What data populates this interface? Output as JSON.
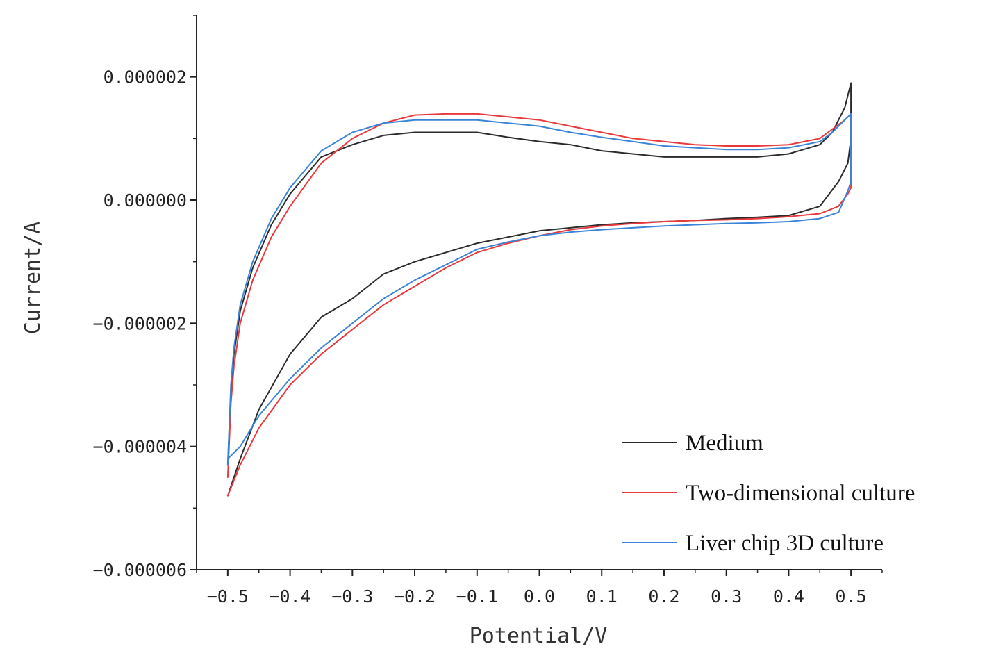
{
  "chart_data": {
    "type": "line",
    "title": "",
    "xlabel": "Potential/V",
    "ylabel": "Current/A",
    "xlim": [
      -0.55,
      0.55
    ],
    "ylim": [
      -6e-06,
      3e-06
    ],
    "x_ticks": [
      -0.5,
      -0.4,
      -0.3,
      -0.2,
      -0.1,
      0.0,
      0.1,
      0.2,
      0.3,
      0.4,
      0.5
    ],
    "x_tick_labels": [
      "−0.5",
      "−0.4",
      "−0.3",
      "−0.2",
      "−0.1",
      "0.0",
      "0.1",
      "0.2",
      "0.3",
      "0.4",
      "0.5"
    ],
    "y_ticks": [
      2e-06,
      0.0,
      -2e-06,
      -4e-06,
      -6e-06
    ],
    "y_tick_labels": [
      "0.000002",
      "0.000000",
      "−0.000002",
      "−0.000004",
      "−0.000006"
    ],
    "legend_position": "bottom-right",
    "grid": false,
    "series": [
      {
        "name": "Medium",
        "color": "#2b2b2b",
        "x": [
          -0.5,
          -0.495,
          -0.49,
          -0.48,
          -0.46,
          -0.43,
          -0.4,
          -0.35,
          -0.3,
          -0.25,
          -0.2,
          -0.15,
          -0.1,
          -0.05,
          0.0,
          0.05,
          0.1,
          0.15,
          0.2,
          0.25,
          0.3,
          0.35,
          0.4,
          0.45,
          0.47,
          0.49,
          0.5,
          0.5,
          0.495,
          0.48,
          0.45,
          0.4,
          0.35,
          0.3,
          0.25,
          0.2,
          0.15,
          0.1,
          0.05,
          0.0,
          -0.05,
          -0.1,
          -0.15,
          -0.2,
          -0.25,
          -0.3,
          -0.35,
          -0.4,
          -0.45,
          -0.48,
          -0.5
        ],
        "y": [
          -4.3e-06,
          -3.1e-06,
          -2.5e-06,
          -1.8e-06,
          -1.1e-06,
          -4e-07,
          1e-07,
          7e-07,
          9e-07,
          1.05e-06,
          1.1e-06,
          1.1e-06,
          1.1e-06,
          1.02e-06,
          9.5e-07,
          9e-07,
          8e-07,
          7.5e-07,
          7e-07,
          7e-07,
          7e-07,
          7e-07,
          7.5e-07,
          9e-07,
          1.1e-06,
          1.5e-06,
          1.9e-06,
          1e-06,
          6e-07,
          3e-07,
          -1e-07,
          -2.5e-07,
          -2.8e-07,
          -3e-07,
          -3.3e-07,
          -3.5e-07,
          -3.7e-07,
          -4e-07,
          -4.5e-07,
          -5e-07,
          -6e-07,
          -7e-07,
          -8.5e-07,
          -1e-06,
          -1.2e-06,
          -1.6e-06,
          -1.9e-06,
          -2.5e-06,
          -3.4e-06,
          -4.2e-06,
          -4.8e-06
        ]
      },
      {
        "name": "Two-dimensional culture",
        "color": "#e8393c",
        "x": [
          -0.5,
          -0.495,
          -0.49,
          -0.48,
          -0.46,
          -0.43,
          -0.4,
          -0.35,
          -0.3,
          -0.25,
          -0.2,
          -0.15,
          -0.1,
          -0.05,
          0.0,
          0.05,
          0.1,
          0.15,
          0.2,
          0.25,
          0.3,
          0.35,
          0.4,
          0.45,
          0.47,
          0.49,
          0.5,
          0.5,
          0.495,
          0.48,
          0.45,
          0.4,
          0.35,
          0.3,
          0.25,
          0.2,
          0.15,
          0.1,
          0.05,
          0.0,
          -0.05,
          -0.1,
          -0.15,
          -0.2,
          -0.25,
          -0.3,
          -0.35,
          -0.4,
          -0.45,
          -0.48,
          -0.5
        ],
        "y": [
          -4.5e-06,
          -3.3e-06,
          -2.7e-06,
          -2e-06,
          -1.3e-06,
          -6e-07,
          -1e-07,
          6e-07,
          1e-06,
          1.25e-06,
          1.38e-06,
          1.4e-06,
          1.4e-06,
          1.35e-06,
          1.3e-06,
          1.2e-06,
          1.1e-06,
          1e-06,
          9.5e-07,
          9e-07,
          8.8e-07,
          8.8e-07,
          9e-07,
          1e-06,
          1.15e-06,
          1.3e-06,
          1.4e-06,
          2e-07,
          1e-07,
          -1e-07,
          -2.2e-07,
          -2.7e-07,
          -3e-07,
          -3.2e-07,
          -3.3e-07,
          -3.5e-07,
          -3.8e-07,
          -4.2e-07,
          -4.8e-07,
          -5.8e-07,
          -7e-07,
          -8.5e-07,
          -1.1e-06,
          -1.4e-06,
          -1.7e-06,
          -2.1e-06,
          -2.5e-06,
          -3e-06,
          -3.7e-06,
          -4.3e-06,
          -4.8e-06
        ]
      },
      {
        "name": "Liver chip 3D culture",
        "color": "#3a84d8",
        "x": [
          -0.5,
          -0.495,
          -0.49,
          -0.48,
          -0.46,
          -0.43,
          -0.4,
          -0.35,
          -0.3,
          -0.25,
          -0.2,
          -0.15,
          -0.1,
          -0.05,
          0.0,
          0.05,
          0.1,
          0.15,
          0.2,
          0.25,
          0.3,
          0.35,
          0.4,
          0.45,
          0.47,
          0.49,
          0.5,
          0.5,
          0.495,
          0.48,
          0.45,
          0.4,
          0.35,
          0.3,
          0.25,
          0.2,
          0.15,
          0.1,
          0.05,
          0.0,
          -0.05,
          -0.1,
          -0.15,
          -0.2,
          -0.25,
          -0.3,
          -0.35,
          -0.4,
          -0.45,
          -0.48,
          -0.5
        ],
        "y": [
          -4.3e-06,
          -3e-06,
          -2.4e-06,
          -1.7e-06,
          -1e-06,
          -3e-07,
          2e-07,
          8e-07,
          1.1e-06,
          1.25e-06,
          1.3e-06,
          1.3e-06,
          1.3e-06,
          1.25e-06,
          1.2e-06,
          1.1e-06,
          1.02e-06,
          9.5e-07,
          8.8e-07,
          8.5e-07,
          8.2e-07,
          8.2e-07,
          8.5e-07,
          9.5e-07,
          1.1e-06,
          1.3e-06,
          1.4e-06,
          3e-07,
          1.5e-07,
          -2e-07,
          -3e-07,
          -3.5e-07,
          -3.7e-07,
          -3.8e-07,
          -4e-07,
          -4.2e-07,
          -4.5e-07,
          -4.8e-07,
          -5.2e-07,
          -5.8e-07,
          -6.8e-07,
          -8e-07,
          -1.05e-06,
          -1.3e-06,
          -1.6e-06,
          -2e-06,
          -2.4e-06,
          -2.9e-06,
          -3.5e-06,
          -4e-06,
          -4.2e-06
        ]
      }
    ]
  }
}
